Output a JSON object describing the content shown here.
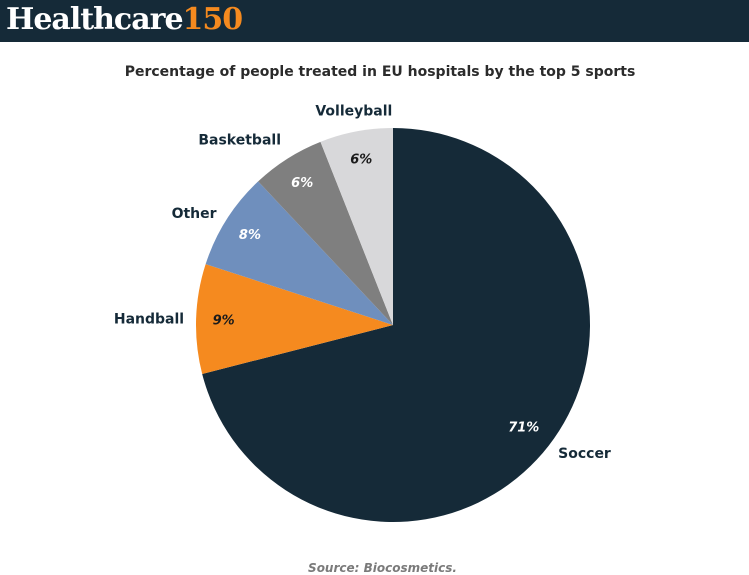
{
  "brand": {
    "word": "Healthcare",
    "number": "150"
  },
  "source": "Source: Biocosmetics.",
  "chart_data": {
    "type": "pie",
    "title": "Percentage of people treated in EU hospitals by the top 5 sports",
    "slices": [
      {
        "label": "Soccer",
        "value": 71,
        "display": "71%",
        "color": "#152a38",
        "label_color": "#ffffff"
      },
      {
        "label": "Handball",
        "value": 9,
        "display": "9%",
        "color": "#f58a1f",
        "label_color": "#1b1b1b"
      },
      {
        "label": "Other",
        "value": 8,
        "display": "8%",
        "color": "#6f8fbd",
        "label_color": "#ffffff"
      },
      {
        "label": "Basketball",
        "value": 6,
        "display": "6%",
        "color": "#7f7f7f",
        "label_color": "#ffffff"
      },
      {
        "label": "Volleyball",
        "value": 6,
        "display": "6%",
        "color": "#d8d8da",
        "label_color": "#1b1b1b"
      }
    ],
    "colors": {
      "category_text": "#152a38"
    },
    "legend": "none"
  }
}
